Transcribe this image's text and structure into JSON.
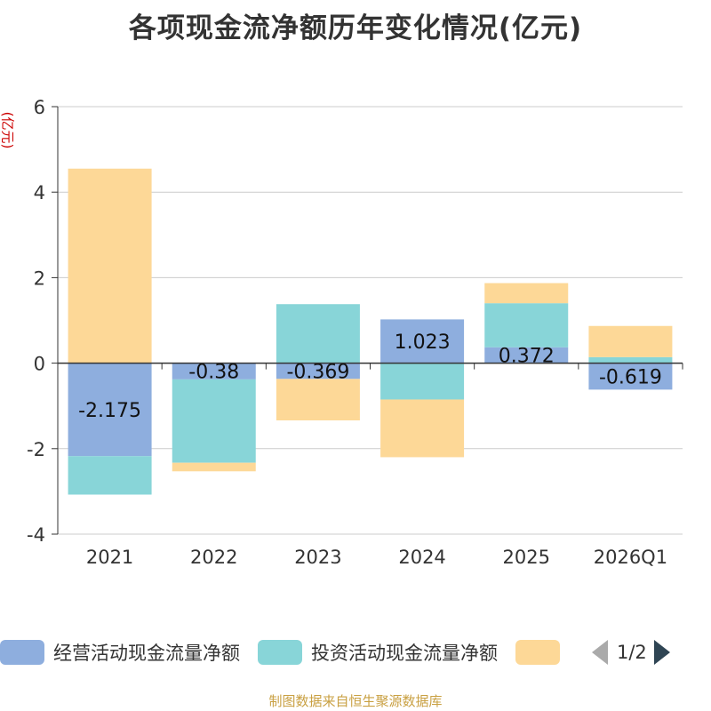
{
  "title": "各项现金流净额历年变化情况(亿元)",
  "unit_label": "(亿元)",
  "source": "制图数据来自恒生聚源数据库",
  "pager": "1/2",
  "colors": {
    "operating": "#8eaede",
    "investing": "#88d5d8",
    "financing": "#fdd897"
  },
  "chart_data": {
    "type": "bar",
    "stacked": true,
    "title": "各项现金流净额历年变化情况(亿元)",
    "ylabel": "(亿元)",
    "ylim": [
      -4,
      6
    ],
    "yticks": [
      -4,
      -2,
      0,
      2,
      4,
      6
    ],
    "categories": [
      "2021",
      "2022",
      "2023",
      "2024",
      "2025",
      "2026Q1"
    ],
    "series": [
      {
        "name": "经营活动现金流量净额",
        "key": "operating",
        "values": [
          -2.175,
          -0.38,
          -0.369,
          1.023,
          0.372,
          -0.619
        ],
        "show_labels": true
      },
      {
        "name": "投资活动现金流量净额",
        "key": "investing",
        "values": [
          -0.9,
          -1.95,
          1.38,
          -0.85,
          1.03,
          0.14
        ],
        "show_labels": false
      },
      {
        "name": "",
        "key": "financing",
        "values": [
          4.55,
          -0.2,
          -0.97,
          -1.35,
          0.47,
          0.73
        ],
        "show_labels": false
      }
    ],
    "legend": [
      "经营活动现金流量净额",
      "投资活动现金流量净额",
      ""
    ],
    "grid": true
  }
}
